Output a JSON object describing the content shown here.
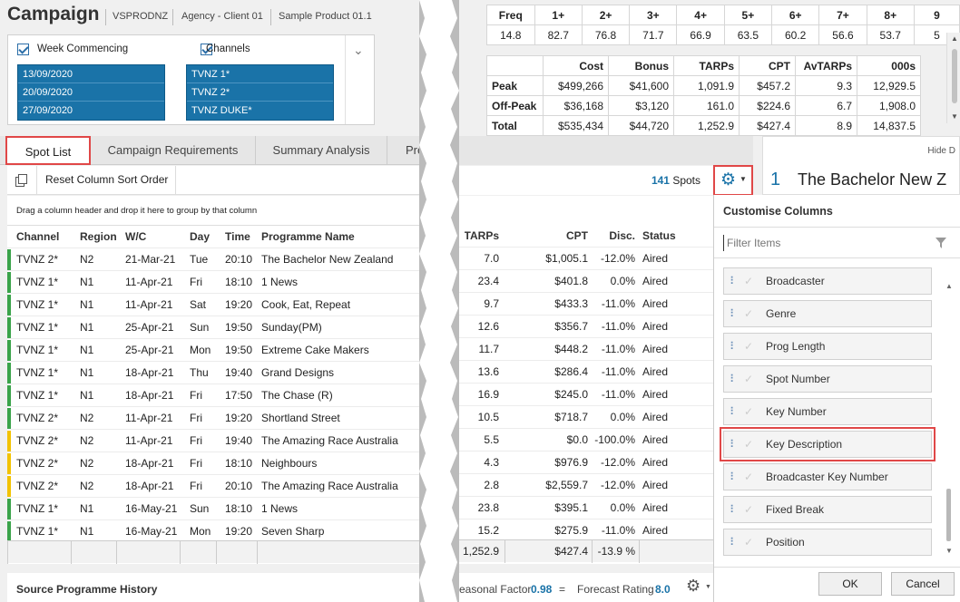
{
  "header": {
    "title": "Campaign",
    "crumbs": [
      "VSPRODNZ",
      "Agency - Client 01",
      "Sample Product 01.1"
    ]
  },
  "filters": {
    "week_label": "Week Commencing",
    "weeks": [
      "13/09/2020",
      "20/09/2020",
      "27/09/2020"
    ],
    "channels_label": "Channels",
    "channels": [
      "TVNZ 1*",
      "TVNZ 2*",
      "TVNZ DUKE*"
    ]
  },
  "tabs": [
    "Spot List",
    "Campaign Requirements",
    "Summary Analysis",
    "Pre"
  ],
  "toolbar": {
    "reset_label": "Reset Column Sort Order",
    "spots_count": "141",
    "spots_label": "Spots"
  },
  "group_hint": "Drag a column header and drop it here to group by that column",
  "grid": {
    "columns": [
      "Channel",
      "Region",
      "W/C",
      "Day",
      "Time",
      "Programme Name",
      "TARPs",
      "CPT",
      "Disc.",
      "Status"
    ],
    "rows": [
      {
        "channel": "TVNZ 2*",
        "region": "N2",
        "wc": "21-Mar-21",
        "day": "Tue",
        "time": "20:10",
        "prog": "The Bachelor New Zealand",
        "tarps": "7.0",
        "cpt": "$1,005.1",
        "disc": "-12.0%",
        "status": "Aired",
        "color": "#3aa34a"
      },
      {
        "channel": "TVNZ 1*",
        "region": "N1",
        "wc": "11-Apr-21",
        "day": "Fri",
        "time": "18:10",
        "prog": "1 News",
        "tarps": "23.4",
        "cpt": "$401.8",
        "disc": "0.0%",
        "status": "Aired",
        "color": "#3aa34a"
      },
      {
        "channel": "TVNZ 1*",
        "region": "N1",
        "wc": "11-Apr-21",
        "day": "Sat",
        "time": "19:20",
        "prog": "Cook, Eat, Repeat",
        "tarps": "9.7",
        "cpt": "$433.3",
        "disc": "-11.0%",
        "status": "Aired",
        "color": "#3aa34a"
      },
      {
        "channel": "TVNZ 1*",
        "region": "N1",
        "wc": "25-Apr-21",
        "day": "Sun",
        "time": "19:50",
        "prog": "Sunday(PM)",
        "tarps": "12.6",
        "cpt": "$356.7",
        "disc": "-11.0%",
        "status": "Aired",
        "color": "#3aa34a"
      },
      {
        "channel": "TVNZ 1*",
        "region": "N1",
        "wc": "25-Apr-21",
        "day": "Mon",
        "time": "19:50",
        "prog": "Extreme Cake Makers",
        "tarps": "11.7",
        "cpt": "$448.2",
        "disc": "-11.0%",
        "status": "Aired",
        "color": "#3aa34a"
      },
      {
        "channel": "TVNZ 1*",
        "region": "N1",
        "wc": "18-Apr-21",
        "day": "Thu",
        "time": "19:40",
        "prog": "Grand Designs",
        "tarps": "13.6",
        "cpt": "$286.4",
        "disc": "-11.0%",
        "status": "Aired",
        "color": "#3aa34a"
      },
      {
        "channel": "TVNZ 1*",
        "region": "N1",
        "wc": "18-Apr-21",
        "day": "Fri",
        "time": "17:50",
        "prog": "The Chase (R)",
        "tarps": "16.9",
        "cpt": "$245.0",
        "disc": "-11.0%",
        "status": "Aired",
        "color": "#3aa34a"
      },
      {
        "channel": "TVNZ 2*",
        "region": "N2",
        "wc": "11-Apr-21",
        "day": "Fri",
        "time": "19:20",
        "prog": "Shortland Street",
        "tarps": "10.5",
        "cpt": "$718.7",
        "disc": "0.0%",
        "status": "Aired",
        "color": "#3aa34a"
      },
      {
        "channel": "TVNZ 2*",
        "region": "N2",
        "wc": "11-Apr-21",
        "day": "Fri",
        "time": "19:40",
        "prog": "The Amazing Race Australia",
        "tarps": "5.5",
        "cpt": "$0.0",
        "disc": "-100.0%",
        "status": "Aired",
        "color": "#f2c200"
      },
      {
        "channel": "TVNZ 2*",
        "region": "N2",
        "wc": "18-Apr-21",
        "day": "Fri",
        "time": "18:10",
        "prog": "Neighbours",
        "tarps": "4.3",
        "cpt": "$976.9",
        "disc": "-12.0%",
        "status": "Aired",
        "color": "#f2c200"
      },
      {
        "channel": "TVNZ 2*",
        "region": "N2",
        "wc": "18-Apr-21",
        "day": "Fri",
        "time": "20:10",
        "prog": "The Amazing Race Australia",
        "tarps": "2.8",
        "cpt": "$2,559.7",
        "disc": "-12.0%",
        "status": "Aired",
        "color": "#f2c200"
      },
      {
        "channel": "TVNZ 1*",
        "region": "N1",
        "wc": "16-May-21",
        "day": "Sun",
        "time": "18:10",
        "prog": "1 News",
        "tarps": "23.8",
        "cpt": "$395.1",
        "disc": "0.0%",
        "status": "Aired",
        "color": "#3aa34a"
      },
      {
        "channel": "TVNZ 1*",
        "region": "N1",
        "wc": "16-May-21",
        "day": "Mon",
        "time": "19:20",
        "prog": "Seven Sharp",
        "tarps": "15.2",
        "cpt": "$275.9",
        "disc": "-11.0%",
        "status": "Aired",
        "color": "#3aa34a"
      }
    ],
    "totals": {
      "tarps": "1,252.9",
      "cpt": "$427.4",
      "disc": "-13.9 %"
    }
  },
  "footer": {
    "source_label": "Source Programme History",
    "seasonal_label": "Seasonal Factor",
    "seasonal_value": "0.98",
    "eq": "=",
    "forecast_label": "Forecast Rating",
    "forecast_value": "8.0"
  },
  "freq_table": {
    "header": [
      "Freq",
      "1+",
      "2+",
      "3+",
      "4+",
      "5+",
      "6+",
      "7+",
      "8+",
      "9"
    ],
    "values": [
      "14.8",
      "82.7",
      "76.8",
      "71.7",
      "66.9",
      "63.5",
      "60.2",
      "56.6",
      "53.7",
      "5"
    ]
  },
  "cost_table": {
    "header": [
      "",
      "Cost",
      "Bonus",
      "TARPs",
      "CPT",
      "AvTARPs",
      "000s"
    ],
    "rows": [
      [
        "Peak",
        "$499,266",
        "$41,600",
        "1,091.9",
        "$457.2",
        "9.3",
        "12,929.5"
      ],
      [
        "Off-Peak",
        "$36,168",
        "$3,120",
        "161.0",
        "$224.6",
        "6.7",
        "1,908.0"
      ],
      [
        "Total",
        "$535,434",
        "$44,720",
        "1,252.9",
        "$427.4",
        "8.9",
        "14,837.5"
      ]
    ]
  },
  "detail": {
    "hide_label": "Hide D",
    "number": "1",
    "title": "The Bachelor New Z"
  },
  "customise": {
    "title": "Customise Columns",
    "filter_placeholder": "Filter Items",
    "items": [
      "Broadcaster",
      "Genre",
      "Prog Length",
      "Spot Number",
      "Key Number",
      "Key Description",
      "Broadcaster Key Number",
      "Fixed Break",
      "Position"
    ],
    "ok_label": "OK",
    "cancel_label": "Cancel"
  },
  "colors": {
    "accent": "#1a73a8",
    "highlight": "#e04747"
  }
}
